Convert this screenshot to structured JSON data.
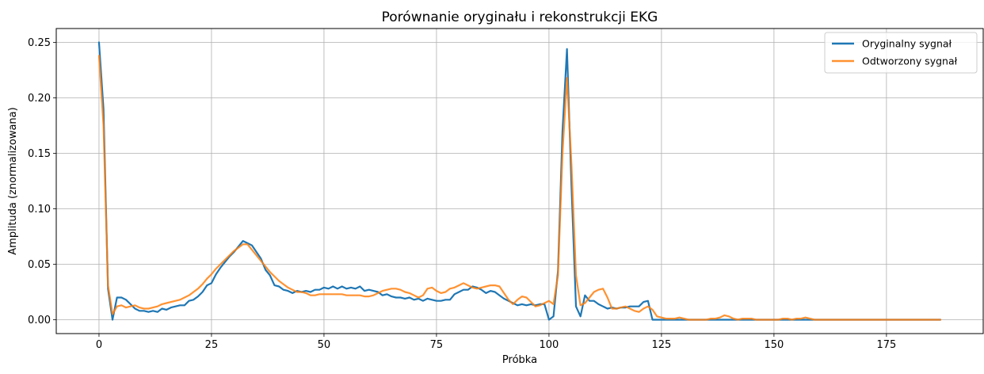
{
  "chart_data": {
    "type": "line",
    "title": "Porównanie oryginału i rekonstrukcji EKG",
    "xlabel": "Próbka",
    "ylabel": "Amplituda (znormalizowana)",
    "xlim": [
      -9.5,
      196.5
    ],
    "ylim": [
      -0.0125,
      0.2625
    ],
    "xticks": [
      0,
      25,
      50,
      75,
      100,
      125,
      150,
      175
    ],
    "yticks": [
      0.0,
      0.05,
      0.1,
      0.15,
      0.2,
      0.25
    ],
    "ytick_labels": [
      "0.00",
      "0.05",
      "0.10",
      "0.15",
      "0.20",
      "0.25"
    ],
    "grid": true,
    "legend_position": "top-right",
    "series": [
      {
        "name": "Oryginalny sygnał",
        "color": "#1f77b4",
        "points": [
          [
            0,
            0.25
          ],
          [
            1,
            0.19
          ],
          [
            2,
            0.028
          ],
          [
            3,
            0.0
          ],
          [
            4,
            0.02
          ],
          [
            5,
            0.02
          ],
          [
            6,
            0.018
          ],
          [
            7,
            0.014
          ],
          [
            8,
            0.01
          ],
          [
            9,
            0.008
          ],
          [
            10,
            0.008
          ],
          [
            11,
            0.007
          ],
          [
            12,
            0.008
          ],
          [
            13,
            0.007
          ],
          [
            14,
            0.01
          ],
          [
            15,
            0.009
          ],
          [
            16,
            0.011
          ],
          [
            17,
            0.012
          ],
          [
            18,
            0.013
          ],
          [
            19,
            0.013
          ],
          [
            20,
            0.017
          ],
          [
            21,
            0.018
          ],
          [
            22,
            0.021
          ],
          [
            23,
            0.025
          ],
          [
            24,
            0.031
          ],
          [
            25,
            0.033
          ],
          [
            26,
            0.041
          ],
          [
            27,
            0.047
          ],
          [
            28,
            0.052
          ],
          [
            29,
            0.057
          ],
          [
            30,
            0.061
          ],
          [
            31,
            0.066
          ],
          [
            32,
            0.071
          ],
          [
            33,
            0.069
          ],
          [
            34,
            0.067
          ],
          [
            35,
            0.061
          ],
          [
            36,
            0.055
          ],
          [
            37,
            0.045
          ],
          [
            38,
            0.04
          ],
          [
            39,
            0.031
          ],
          [
            40,
            0.03
          ],
          [
            41,
            0.027
          ],
          [
            42,
            0.026
          ],
          [
            43,
            0.024
          ],
          [
            44,
            0.026
          ],
          [
            45,
            0.025
          ],
          [
            46,
            0.026
          ],
          [
            47,
            0.025
          ],
          [
            48,
            0.027
          ],
          [
            49,
            0.027
          ],
          [
            50,
            0.029
          ],
          [
            51,
            0.028
          ],
          [
            52,
            0.03
          ],
          [
            53,
            0.028
          ],
          [
            54,
            0.03
          ],
          [
            55,
            0.028
          ],
          [
            56,
            0.029
          ],
          [
            57,
            0.028
          ],
          [
            58,
            0.03
          ],
          [
            59,
            0.026
          ],
          [
            60,
            0.027
          ],
          [
            61,
            0.026
          ],
          [
            62,
            0.025
          ],
          [
            63,
            0.022
          ],
          [
            64,
            0.023
          ],
          [
            65,
            0.021
          ],
          [
            66,
            0.02
          ],
          [
            67,
            0.02
          ],
          [
            68,
            0.019
          ],
          [
            69,
            0.02
          ],
          [
            70,
            0.018
          ],
          [
            71,
            0.019
          ],
          [
            72,
            0.017
          ],
          [
            73,
            0.019
          ],
          [
            74,
            0.018
          ],
          [
            75,
            0.017
          ],
          [
            76,
            0.017
          ],
          [
            77,
            0.018
          ],
          [
            78,
            0.018
          ],
          [
            79,
            0.023
          ],
          [
            80,
            0.025
          ],
          [
            81,
            0.027
          ],
          [
            82,
            0.027
          ],
          [
            83,
            0.03
          ],
          [
            84,
            0.029
          ],
          [
            85,
            0.027
          ],
          [
            86,
            0.024
          ],
          [
            87,
            0.026
          ],
          [
            88,
            0.025
          ],
          [
            89,
            0.022
          ],
          [
            90,
            0.019
          ],
          [
            91,
            0.017
          ],
          [
            92,
            0.015
          ],
          [
            93,
            0.013
          ],
          [
            94,
            0.014
          ],
          [
            95,
            0.013
          ],
          [
            96,
            0.014
          ],
          [
            97,
            0.013
          ],
          [
            98,
            0.014
          ],
          [
            99,
            0.014
          ],
          [
            100,
            0.0
          ],
          [
            101,
            0.003
          ],
          [
            102,
            0.044
          ],
          [
            103,
            0.17
          ],
          [
            104,
            0.244
          ],
          [
            105,
            0.12
          ],
          [
            106,
            0.012
          ],
          [
            107,
            0.003
          ],
          [
            108,
            0.022
          ],
          [
            109,
            0.017
          ],
          [
            110,
            0.017
          ],
          [
            111,
            0.014
          ],
          [
            112,
            0.012
          ],
          [
            113,
            0.01
          ],
          [
            114,
            0.011
          ],
          [
            115,
            0.01
          ],
          [
            116,
            0.011
          ],
          [
            117,
            0.011
          ],
          [
            118,
            0.012
          ],
          [
            119,
            0.012
          ],
          [
            120,
            0.012
          ],
          [
            121,
            0.016
          ],
          [
            122,
            0.017
          ],
          [
            123,
            0.0
          ],
          [
            124,
            0.0
          ],
          [
            125,
            0.0
          ],
          [
            126,
            0.0
          ],
          [
            127,
            0.0
          ],
          [
            128,
            0.0
          ],
          [
            129,
            0.0
          ],
          [
            130,
            0.0
          ],
          [
            135,
            0.0
          ],
          [
            140,
            0.0
          ],
          [
            145,
            0.0
          ],
          [
            150,
            0.0
          ],
          [
            155,
            0.0
          ],
          [
            160,
            0.0
          ],
          [
            165,
            0.0
          ],
          [
            170,
            0.0
          ],
          [
            175,
            0.0
          ],
          [
            180,
            0.0
          ],
          [
            187,
            0.0
          ]
        ]
      },
      {
        "name": "Odtworzony sygnał",
        "color": "#ff7f0e",
        "points": [
          [
            0,
            0.238
          ],
          [
            1,
            0.175
          ],
          [
            2,
            0.031
          ],
          [
            3,
            0.005
          ],
          [
            4,
            0.012
          ],
          [
            5,
            0.013
          ],
          [
            6,
            0.011
          ],
          [
            7,
            0.012
          ],
          [
            8,
            0.013
          ],
          [
            9,
            0.011
          ],
          [
            10,
            0.01
          ],
          [
            11,
            0.01
          ],
          [
            12,
            0.011
          ],
          [
            13,
            0.012
          ],
          [
            14,
            0.014
          ],
          [
            15,
            0.015
          ],
          [
            16,
            0.016
          ],
          [
            17,
            0.017
          ],
          [
            18,
            0.018
          ],
          [
            19,
            0.02
          ],
          [
            20,
            0.022
          ],
          [
            21,
            0.025
          ],
          [
            22,
            0.028
          ],
          [
            23,
            0.032
          ],
          [
            24,
            0.037
          ],
          [
            25,
            0.041
          ],
          [
            26,
            0.046
          ],
          [
            27,
            0.05
          ],
          [
            28,
            0.054
          ],
          [
            29,
            0.058
          ],
          [
            30,
            0.062
          ],
          [
            31,
            0.065
          ],
          [
            32,
            0.068
          ],
          [
            33,
            0.068
          ],
          [
            34,
            0.063
          ],
          [
            35,
            0.058
          ],
          [
            36,
            0.053
          ],
          [
            37,
            0.048
          ],
          [
            38,
            0.043
          ],
          [
            39,
            0.039
          ],
          [
            40,
            0.035
          ],
          [
            41,
            0.032
          ],
          [
            42,
            0.029
          ],
          [
            43,
            0.027
          ],
          [
            44,
            0.025
          ],
          [
            45,
            0.025
          ],
          [
            46,
            0.024
          ],
          [
            47,
            0.022
          ],
          [
            48,
            0.022
          ],
          [
            49,
            0.023
          ],
          [
            50,
            0.023
          ],
          [
            51,
            0.023
          ],
          [
            52,
            0.023
          ],
          [
            53,
            0.023
          ],
          [
            54,
            0.023
          ],
          [
            55,
            0.022
          ],
          [
            56,
            0.022
          ],
          [
            57,
            0.022
          ],
          [
            58,
            0.022
          ],
          [
            59,
            0.021
          ],
          [
            60,
            0.021
          ],
          [
            61,
            0.022
          ],
          [
            62,
            0.024
          ],
          [
            63,
            0.026
          ],
          [
            64,
            0.027
          ],
          [
            65,
            0.028
          ],
          [
            66,
            0.028
          ],
          [
            67,
            0.027
          ],
          [
            68,
            0.025
          ],
          [
            69,
            0.024
          ],
          [
            70,
            0.022
          ],
          [
            71,
            0.02
          ],
          [
            72,
            0.022
          ],
          [
            73,
            0.028
          ],
          [
            74,
            0.029
          ],
          [
            75,
            0.026
          ],
          [
            76,
            0.024
          ],
          [
            77,
            0.025
          ],
          [
            78,
            0.028
          ],
          [
            79,
            0.029
          ],
          [
            80,
            0.031
          ],
          [
            81,
            0.033
          ],
          [
            82,
            0.031
          ],
          [
            83,
            0.029
          ],
          [
            84,
            0.028
          ],
          [
            85,
            0.029
          ],
          [
            86,
            0.03
          ],
          [
            87,
            0.031
          ],
          [
            88,
            0.031
          ],
          [
            89,
            0.03
          ],
          [
            90,
            0.024
          ],
          [
            91,
            0.018
          ],
          [
            92,
            0.014
          ],
          [
            93,
            0.018
          ],
          [
            94,
            0.021
          ],
          [
            95,
            0.02
          ],
          [
            96,
            0.016
          ],
          [
            97,
            0.012
          ],
          [
            98,
            0.013
          ],
          [
            99,
            0.015
          ],
          [
            100,
            0.017
          ],
          [
            101,
            0.014
          ],
          [
            102,
            0.04
          ],
          [
            103,
            0.15
          ],
          [
            104,
            0.218
          ],
          [
            105,
            0.14
          ],
          [
            106,
            0.04
          ],
          [
            107,
            0.013
          ],
          [
            108,
            0.015
          ],
          [
            109,
            0.02
          ],
          [
            110,
            0.025
          ],
          [
            111,
            0.027
          ],
          [
            112,
            0.028
          ],
          [
            113,
            0.02
          ],
          [
            114,
            0.01
          ],
          [
            115,
            0.01
          ],
          [
            116,
            0.011
          ],
          [
            117,
            0.012
          ],
          [
            118,
            0.01
          ],
          [
            119,
            0.008
          ],
          [
            120,
            0.007
          ],
          [
            121,
            0.01
          ],
          [
            122,
            0.012
          ],
          [
            123,
            0.009
          ],
          [
            124,
            0.003
          ],
          [
            125,
            0.002
          ],
          [
            126,
            0.001
          ],
          [
            127,
            0.001
          ],
          [
            128,
            0.001
          ],
          [
            129,
            0.002
          ],
          [
            130,
            0.001
          ],
          [
            131,
            0.0
          ],
          [
            132,
            0.0
          ],
          [
            133,
            0.0
          ],
          [
            134,
            0.0
          ],
          [
            135,
            0.0
          ],
          [
            136,
            0.001
          ],
          [
            137,
            0.001
          ],
          [
            138,
            0.002
          ],
          [
            139,
            0.004
          ],
          [
            140,
            0.003
          ],
          [
            141,
            0.001
          ],
          [
            142,
            0.0
          ],
          [
            143,
            0.001
          ],
          [
            144,
            0.001
          ],
          [
            145,
            0.001
          ],
          [
            146,
            0.0
          ],
          [
            147,
            0.0
          ],
          [
            148,
            0.0
          ],
          [
            149,
            0.0
          ],
          [
            150,
            0.0
          ],
          [
            151,
            0.0
          ],
          [
            152,
            0.001
          ],
          [
            153,
            0.001
          ],
          [
            154,
            0.0
          ],
          [
            155,
            0.001
          ],
          [
            156,
            0.001
          ],
          [
            157,
            0.002
          ],
          [
            158,
            0.001
          ],
          [
            159,
            0.0
          ],
          [
            160,
            0.0
          ],
          [
            165,
            0.0
          ],
          [
            170,
            0.0
          ],
          [
            175,
            0.0
          ],
          [
            180,
            0.0
          ],
          [
            187,
            0.0
          ]
        ]
      }
    ]
  }
}
